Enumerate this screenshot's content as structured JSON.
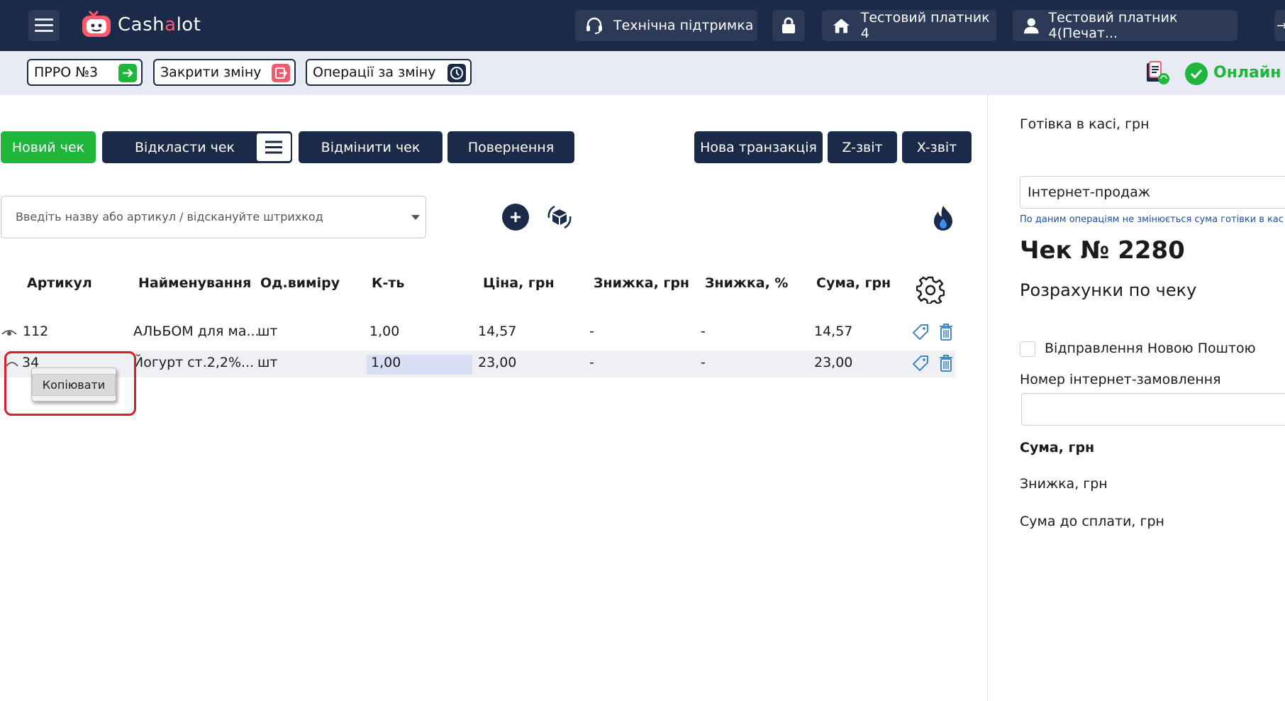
{
  "header": {
    "logo_text_before": "Cash",
    "logo_text_accent": "a",
    "logo_text_after": "lot",
    "support_label": "Технічна підтримка",
    "company_label": "Тестовий платник 4",
    "user_label": "Тестовий платник 4(Печат...",
    "icons": [
      "menu-icon",
      "headset-icon",
      "lock-icon",
      "home-icon",
      "user-icon"
    ]
  },
  "subbar": {
    "prro_label": "ПРРО №3",
    "close_shift_label": "Закрити зміну",
    "shift_ops_label": "Операції за зміну",
    "status_label": "Онлайн",
    "colors": {
      "prro_icon": "#1eb63b",
      "close_icon": "#ef5a6f",
      "ops_icon": "#1b2a48",
      "status": "#1eb63b"
    }
  },
  "actions": {
    "new_check": "Новий чек",
    "postpone_check": "Відкласти чек",
    "cancel_check": "Відмінити чек",
    "return": "Повернення",
    "new_transaction": "Нова транзакція",
    "z_report": "Z-звіт",
    "x_report": "X-звіт"
  },
  "search": {
    "placeholder": "Введіть назву або артикул / відскануйте штрихкод"
  },
  "table": {
    "headers": [
      "Артикул",
      "Найменування",
      "Од.виміру",
      "К-ть",
      "Ціна, грн",
      "Знижка, грн",
      "Знижка, %",
      "Сума, грн"
    ],
    "rows": [
      {
        "article": "112",
        "name": "АЛЬБОМ для ма...",
        "unit": "шт",
        "qty": "1,00",
        "price": "14,57",
        "disc": "-",
        "disc_pct": "-",
        "sum": "14,57"
      },
      {
        "article": "34",
        "name": "Йогурт ст.2,2%...",
        "unit": "шт",
        "qty": "1,00",
        "price": "23,00",
        "disc": "-",
        "disc_pct": "-",
        "sum": "23,00"
      }
    ]
  },
  "context_menu": {
    "copy_label": "Копіювати"
  },
  "right_panel": {
    "cash_label": "Готівка в касі, грн",
    "sale_type": "Інтернет-продаж",
    "sale_note": "По даним операціям не змінюється сума готівки в кас",
    "check_title": "Чек № 2280",
    "check_subtitle": "Розрахунки по чеку",
    "nova_poshta_label": "Відправлення Новою Поштою",
    "order_number_label": "Номер інтернет-замовлення",
    "sum_label": "Сума, грн",
    "discount_label": "Знижка, грн",
    "to_pay_label": "Сума до сплати, грн"
  }
}
